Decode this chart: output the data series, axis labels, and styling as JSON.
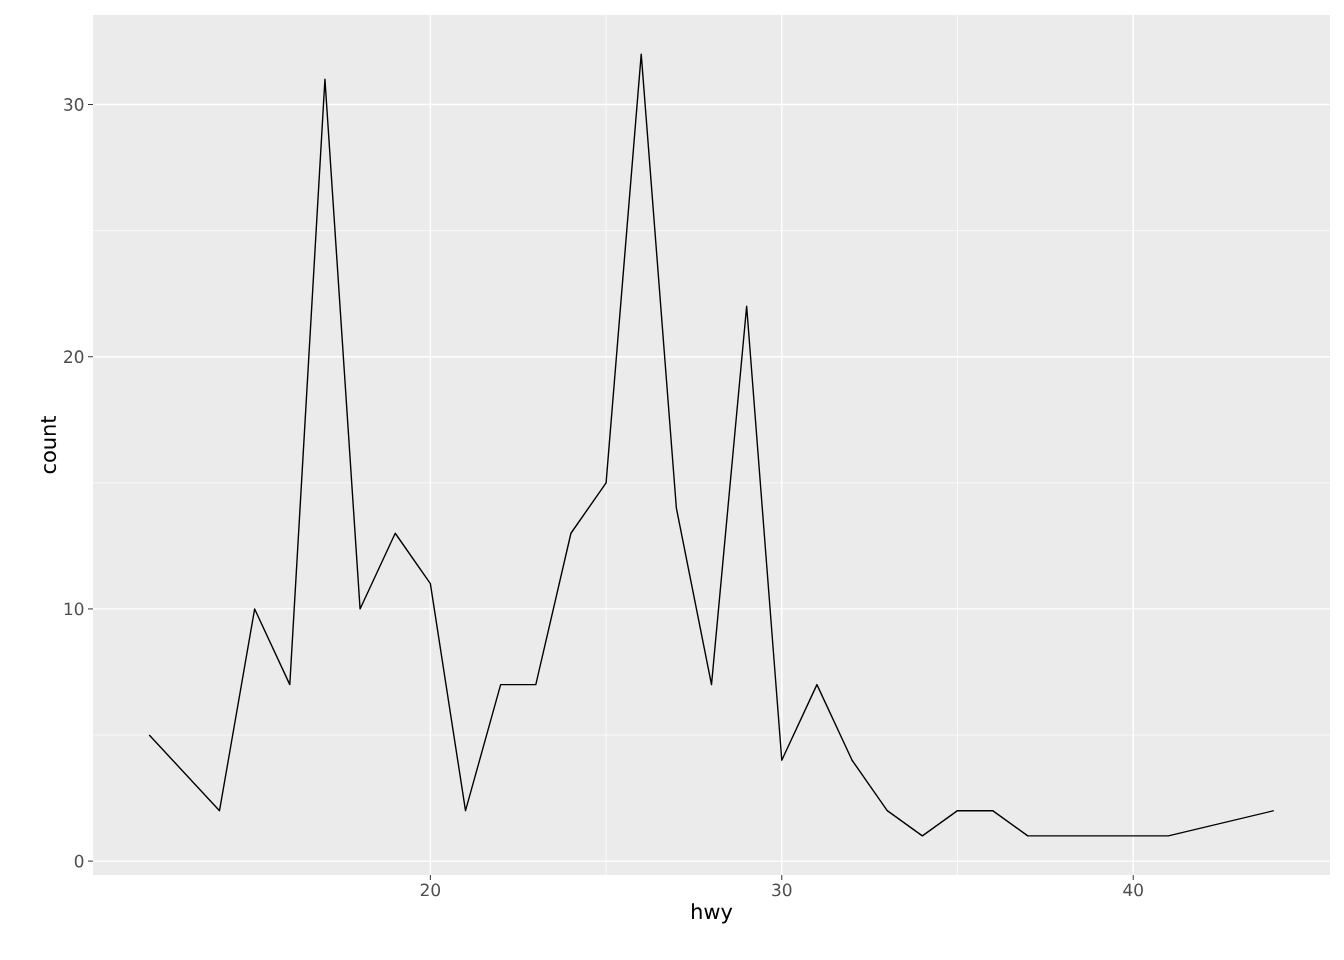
{
  "chart_data": {
    "type": "line",
    "xlabel": "hwy",
    "ylabel": "count",
    "x": [
      12,
      14,
      15,
      16,
      17,
      18,
      19,
      20,
      21,
      22,
      23,
      24,
      25,
      26,
      27,
      28,
      29,
      30,
      31,
      32,
      33,
      34,
      35,
      36,
      37,
      41,
      44
    ],
    "series": [
      {
        "color": "#000000",
        "values": [
          5,
          2,
          10,
          7,
          31,
          10,
          13,
          11,
          2,
          7,
          7,
          13,
          15,
          32,
          14,
          7,
          22,
          4,
          7,
          4,
          2,
          1,
          2,
          2,
          1,
          1,
          2
        ]
      }
    ],
    "xlim": [
      10.4,
      45.6
    ],
    "ylim": [
      -0.55,
      33.55
    ],
    "xticks": [
      20,
      30,
      40
    ],
    "yticks": [
      0,
      10,
      20,
      30
    ],
    "grid": true,
    "marker": "none",
    "line_style": "solid"
  }
}
